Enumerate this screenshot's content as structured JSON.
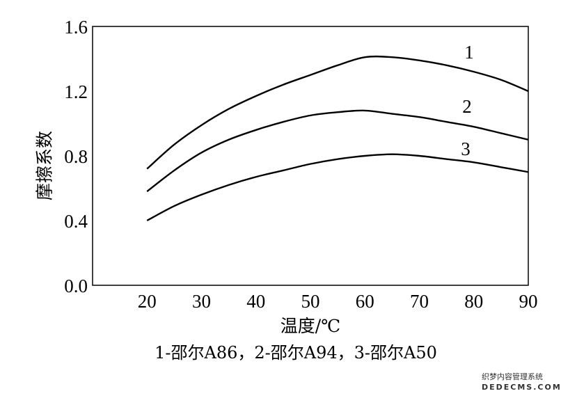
{
  "chart_data": {
    "type": "line",
    "xlabel": "温度/℃",
    "ylabel": "摩擦系数",
    "caption": "1-邵尔A86，2-邵尔A94，3-邵尔A50",
    "x_ticks": [
      20,
      30,
      40,
      50,
      60,
      70,
      80,
      90
    ],
    "y_ticks": [
      "0.0",
      "0.4",
      "0.8",
      "1.2",
      "1.6"
    ],
    "xlim": [
      10,
      90
    ],
    "ylim": [
      0,
      1.6
    ],
    "grid": false,
    "series": [
      {
        "label": "1",
        "x": [
          20,
          25,
          30,
          35,
          40,
          45,
          50,
          55,
          60,
          65,
          70,
          75,
          80,
          85,
          90
        ],
        "y": [
          0.72,
          0.87,
          0.99,
          1.09,
          1.17,
          1.24,
          1.3,
          1.36,
          1.41,
          1.41,
          1.39,
          1.36,
          1.32,
          1.27,
          1.2
        ]
      },
      {
        "label": "2",
        "x": [
          20,
          25,
          30,
          35,
          40,
          45,
          50,
          55,
          60,
          65,
          70,
          75,
          80,
          85,
          90
        ],
        "y": [
          0.58,
          0.71,
          0.82,
          0.9,
          0.96,
          1.01,
          1.05,
          1.07,
          1.08,
          1.06,
          1.04,
          1.01,
          0.98,
          0.94,
          0.9
        ]
      },
      {
        "label": "3",
        "x": [
          20,
          25,
          30,
          35,
          40,
          45,
          50,
          55,
          60,
          65,
          70,
          75,
          80,
          85,
          90
        ],
        "y": [
          0.4,
          0.49,
          0.56,
          0.62,
          0.67,
          0.71,
          0.75,
          0.78,
          0.8,
          0.81,
          0.8,
          0.78,
          0.76,
          0.73,
          0.7
        ]
      }
    ]
  },
  "watermark": {
    "line1": "织梦内容管理系统",
    "line2": "DEDECMS.COM"
  }
}
